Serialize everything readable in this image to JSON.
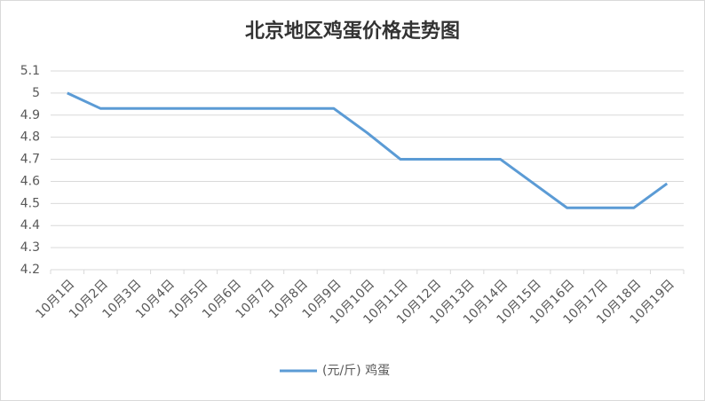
{
  "chart_data": {
    "type": "line",
    "title": "北京地区鸡蛋价格走势图",
    "categories": [
      "10月1日",
      "10月2日",
      "10月3日",
      "10月4日",
      "10月5日",
      "10月6日",
      "10月7日",
      "10月8日",
      "10月9日",
      "10月10日",
      "10月11日",
      "10月12日",
      "10月13日",
      "10月14日",
      "10月15日",
      "10月16日",
      "10月17日",
      "10月18日",
      "10月19日"
    ],
    "series": [
      {
        "name": "(元/斤) 鸡蛋",
        "color": "#5b9bd5",
        "values": [
          5,
          4.93,
          4.93,
          4.93,
          4.93,
          4.93,
          4.93,
          4.93,
          4.93,
          4.82,
          4.7,
          4.7,
          4.7,
          4.7,
          4.59,
          4.48,
          4.48,
          4.48,
          4.59
        ]
      }
    ],
    "ylim": [
      4.2,
      5.1
    ],
    "yticks": [
      4.2,
      4.3,
      4.4,
      4.5,
      4.6,
      4.7,
      4.8,
      4.9,
      5,
      5.1
    ],
    "grid": true,
    "legend": "bottom"
  }
}
